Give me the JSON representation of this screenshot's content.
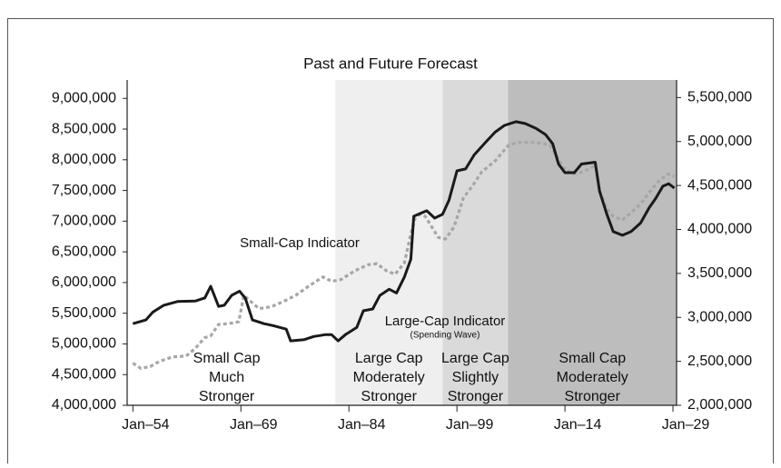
{
  "chart_data": {
    "type": "line",
    "title": "Past and Future Forecast",
    "xlim": [
      1953.2,
      2029.5
    ],
    "xticks": [
      {
        "value": 1954,
        "label": "Jan–54"
      },
      {
        "value": 1969,
        "label": "Jan–69"
      },
      {
        "value": 1984,
        "label": "Jan–84"
      },
      {
        "value": 1999,
        "label": "Jan–99"
      },
      {
        "value": 2014,
        "label": "Jan–14"
      },
      {
        "value": 2029,
        "label": "Jan–29"
      }
    ],
    "ylim": [
      4000000,
      9300000
    ],
    "yticks": [
      {
        "value": 4000000,
        "label": "4,000,000"
      },
      {
        "value": 4500000,
        "label": "4,500,000"
      },
      {
        "value": 5000000,
        "label": "5,000,000"
      },
      {
        "value": 5500000,
        "label": "5,500,000"
      },
      {
        "value": 6000000,
        "label": "6,000,000"
      },
      {
        "value": 6500000,
        "label": "6,500,000"
      },
      {
        "value": 7000000,
        "label": "7,000,000"
      },
      {
        "value": 7500000,
        "label": "7,500,000"
      },
      {
        "value": 8000000,
        "label": "8,000,000"
      },
      {
        "value": 8500000,
        "label": "8,500,000"
      },
      {
        "value": 9000000,
        "label": "9,000,000"
      }
    ],
    "y2lim": [
      2000000,
      5700000
    ],
    "y2ticks": [
      {
        "value": 2000000,
        "label": "2,000,000"
      },
      {
        "value": 2500000,
        "label": "2,500,000"
      },
      {
        "value": 3000000,
        "label": "3,000,000"
      },
      {
        "value": 3500000,
        "label": "3,500,000"
      },
      {
        "value": 4000000,
        "label": "4,000,000"
      },
      {
        "value": 4500000,
        "label": "4,500,000"
      },
      {
        "value": 5000000,
        "label": "5,000,000"
      },
      {
        "value": 5500000,
        "label": "5,500,000"
      }
    ],
    "regions": [
      {
        "start": 1953.2,
        "end": 1982.1,
        "color": "#ffffff",
        "label": [
          "Small Cap",
          "Much",
          "Stronger"
        ]
      },
      {
        "start": 1982.1,
        "end": 1997.0,
        "color": "#efeff0",
        "label": [
          "Large Cap",
          "Moderately",
          "Stronger"
        ]
      },
      {
        "start": 1997.0,
        "end": 2006.1,
        "color": "#dadadb",
        "label": [
          "Large Cap",
          "Slightly",
          "Stronger"
        ]
      },
      {
        "start": 2006.1,
        "end": 2029.5,
        "color": "#bdbdbe",
        "label": [
          "Small Cap",
          "Moderately",
          "Stronger"
        ]
      }
    ],
    "annotations": [
      "Small-Cap Indicator",
      "Large-Cap Indicator",
      "(Spending Wave)"
    ],
    "series": [
      {
        "name": "Large-Cap Indicator",
        "color": "#1a1a1a",
        "dashed": false,
        "axis": "y",
        "x": [
          1954.0,
          1955.8,
          1956.8,
          1958.3,
          1960.2,
          1962.7,
          1964.0,
          1964.8,
          1965.9,
          1966.7,
          1967.7,
          1968.8,
          1969.6,
          1970.6,
          1972.2,
          1973.4,
          1975.3,
          1975.9,
          1977.8,
          1979.1,
          1980.7,
          1981.6,
          1982.5,
          1983.5,
          1985.1,
          1986.0,
          1987.3,
          1988.3,
          1989.6,
          1990.6,
          1991.7,
          1992.6,
          1993.0,
          1993.8,
          1994.8,
          1995.9,
          1997.0,
          1997.9,
          1999.0,
          2000.2,
          2001.4,
          2003.1,
          2004.3,
          2005.6,
          2007.2,
          2008.5,
          2010.0,
          2011.3,
          2012.3,
          2013.1,
          2014.0,
          2015.3,
          2016.3,
          2018.2,
          2018.8,
          2019.8,
          2020.7,
          2022.0,
          2023.2,
          2024.5,
          2025.7,
          2026.6,
          2027.6,
          2028.4,
          2029.2
        ],
        "values": [
          5330000,
          5390000,
          5520000,
          5630000,
          5690000,
          5700000,
          5750000,
          5940000,
          5610000,
          5630000,
          5790000,
          5860000,
          5750000,
          5390000,
          5330000,
          5300000,
          5240000,
          5050000,
          5070000,
          5120000,
          5150000,
          5150000,
          5050000,
          5150000,
          5270000,
          5540000,
          5570000,
          5790000,
          5890000,
          5830000,
          6090000,
          6380000,
          7080000,
          7120000,
          7170000,
          7050000,
          7110000,
          7340000,
          7820000,
          7850000,
          8080000,
          8300000,
          8450000,
          8560000,
          8620000,
          8590000,
          8510000,
          8410000,
          8260000,
          7930000,
          7790000,
          7790000,
          7930000,
          7960000,
          7490000,
          7120000,
          6830000,
          6770000,
          6830000,
          6970000,
          7220000,
          7370000,
          7570000,
          7610000,
          7540000
        ]
      },
      {
        "name": "Small-Cap Indicator",
        "color": "#a6a6a6",
        "dashed": true,
        "axis": "y2",
        "x": [
          1954.0,
          1955.1,
          1956.4,
          1957.7,
          1959.5,
          1961.4,
          1962.7,
          1964.0,
          1964.8,
          1965.9,
          1967.4,
          1968.7,
          1969.4,
          1970.1,
          1971.5,
          1973.2,
          1974.9,
          1976.6,
          1978.5,
          1980.4,
          1981.6,
          1982.9,
          1984.8,
          1986.7,
          1987.9,
          1989.2,
          1990.4,
          1991.7,
          1992.6,
          1993.2,
          1993.8,
          1994.6,
          1995.5,
          1996.4,
          1997.4,
          1998.6,
          1999.9,
          2001.2,
          2002.4,
          2004.3,
          2006.2,
          2007.5,
          2010.0,
          2011.9,
          2012.8,
          2013.8,
          2015.1,
          2016.3,
          2017.4,
          2018.2,
          2018.8,
          2019.8,
          2020.7,
          2022.0,
          2023.2,
          2024.5,
          2025.7,
          2027.0,
          2028.3,
          2029.2
        ],
        "values": [
          2480000,
          2420000,
          2440000,
          2500000,
          2550000,
          2560000,
          2650000,
          2770000,
          2790000,
          2920000,
          2930000,
          2950000,
          3250000,
          3200000,
          3100000,
          3120000,
          3180000,
          3250000,
          3360000,
          3460000,
          3410000,
          3430000,
          3530000,
          3600000,
          3610000,
          3530000,
          3490000,
          3620000,
          3950000,
          4130000,
          4170000,
          4150000,
          4030000,
          3910000,
          3890000,
          4030000,
          4360000,
          4500000,
          4650000,
          4780000,
          4960000,
          4990000,
          4990000,
          4960000,
          4840000,
          4700000,
          4630000,
          4650000,
          4690000,
          4730000,
          4440000,
          4240000,
          4150000,
          4110000,
          4190000,
          4290000,
          4420000,
          4550000,
          4630000,
          4600000
        ]
      }
    ]
  }
}
